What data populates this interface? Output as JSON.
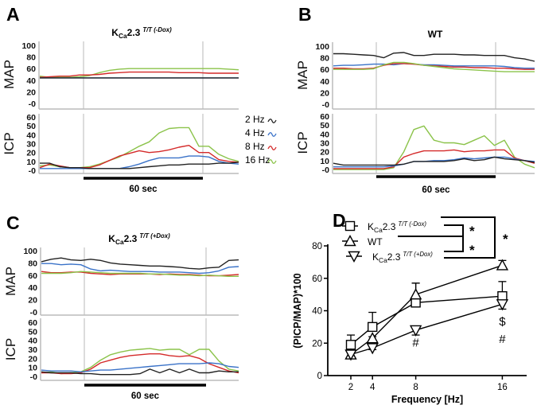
{
  "colors": {
    "2 Hz": "#222222",
    "4 Hz": "#3a72c8",
    "8 Hz": "#d42a2a",
    "16 Hz": "#8bc34a"
  },
  "trace_panels": [
    {
      "letter": "A",
      "title": {
        "base": "K",
        "sub": "Ca",
        "main": "2.3",
        "sup": "T/T (-Dox)"
      },
      "map_label": "MAP",
      "icp_label": "ICP",
      "map_ticks": [
        "100",
        "80",
        "60",
        "40",
        "20",
        "-0"
      ],
      "icp_ticks": [
        "60",
        "50",
        "40",
        "30",
        "20",
        "10",
        "-0"
      ],
      "scale_label": "60 sec",
      "map_traces": {
        "16 Hz": [
          47,
          45,
          45,
          45,
          46,
          48,
          53,
          57,
          59,
          60,
          60,
          60,
          60,
          60,
          60,
          60,
          60,
          60,
          60,
          59,
          58
        ],
        "8 Hz": [
          45,
          46,
          47,
          47,
          49,
          49,
          50,
          52,
          53,
          54,
          54,
          54,
          54,
          54,
          53,
          53,
          53,
          52,
          52,
          52,
          52
        ],
        "4 Hz": [
          44,
          44,
          44,
          44,
          44,
          44,
          44,
          44,
          44,
          44,
          44,
          44,
          44,
          44,
          44,
          44,
          44,
          44,
          44,
          44,
          44
        ],
        "2 Hz": [
          44,
          44,
          44,
          44,
          44,
          44,
          44,
          44,
          44,
          44,
          44,
          44,
          44,
          44,
          44,
          44,
          44,
          44,
          44,
          44,
          44
        ]
      },
      "icp_traces": {
        "16 Hz": [
          5,
          6,
          4,
          3,
          3,
          4,
          7,
          11,
          15,
          21,
          27,
          32,
          42,
          47,
          48,
          48,
          27,
          27,
          18,
          13,
          10
        ],
        "8 Hz": [
          3,
          7,
          5,
          3,
          3,
          3,
          6,
          11,
          16,
          19,
          22,
          20,
          21,
          23,
          26,
          28,
          20,
          20,
          12,
          10,
          9
        ],
        "4 Hz": [
          2,
          2,
          2,
          2,
          2,
          2,
          2,
          2,
          2,
          4,
          7,
          11,
          14,
          14,
          14,
          16,
          16,
          15,
          10,
          8,
          7
        ],
        "2 Hz": [
          8,
          8,
          4,
          3,
          3,
          2,
          2,
          2,
          2,
          2,
          3,
          4,
          5,
          6,
          6,
          7,
          7,
          7,
          8,
          8,
          9
        ]
      },
      "legend": [
        "2 Hz",
        "4 Hz",
        "8 Hz",
        "16 Hz"
      ]
    },
    {
      "letter": "B",
      "title": {
        "base": "WT",
        "sub": "",
        "main": "",
        "sup": ""
      },
      "map_label": "MAP",
      "icp_label": "ICP",
      "map_ticks": [
        "100",
        "80",
        "60",
        "40",
        "20",
        "-0"
      ],
      "icp_ticks": [
        "60",
        "50",
        "40",
        "30",
        "20",
        "10",
        "-0"
      ],
      "scale_label": "60 sec",
      "map_traces": {
        "2 Hz": [
          87,
          87,
          86,
          85,
          84,
          80,
          88,
          89,
          84,
          84,
          86,
          86,
          86,
          85,
          85,
          84,
          84,
          84,
          80,
          78,
          74
        ],
        "4 Hz": [
          66,
          67,
          67,
          68,
          69,
          69,
          68,
          70,
          69,
          68,
          68,
          67,
          66,
          66,
          66,
          66,
          66,
          65,
          63,
          62,
          62
        ],
        "8 Hz": [
          62,
          62,
          61,
          61,
          62,
          67,
          70,
          70,
          69,
          67,
          66,
          65,
          64,
          64,
          63,
          63,
          62,
          62,
          61,
          60,
          60
        ],
        "16 Hz": [
          60,
          60,
          60,
          60,
          61,
          68,
          72,
          72,
          70,
          67,
          65,
          63,
          61,
          60,
          59,
          58,
          57,
          56,
          56,
          56,
          56
        ]
      },
      "icp_traces": {
        "16 Hz": [
          0,
          0,
          0,
          0,
          0,
          0,
          2,
          20,
          45,
          49,
          33,
          30,
          30,
          28,
          33,
          38,
          27,
          33,
          14,
          6,
          2
        ],
        "8 Hz": [
          1,
          1,
          1,
          1,
          1,
          1,
          3,
          14,
          18,
          21,
          21,
          21,
          22,
          20,
          21,
          21,
          22,
          22,
          13,
          10,
          7
        ],
        "4 Hz": [
          3,
          3,
          3,
          3,
          3,
          3,
          4,
          6,
          9,
          9,
          10,
          10,
          11,
          13,
          12,
          13,
          14,
          14,
          12,
          10,
          9
        ],
        "2 Hz": [
          7,
          5,
          5,
          5,
          5,
          5,
          5,
          6,
          9,
          9,
          9,
          9,
          10,
          12,
          10,
          11,
          14,
          12,
          11,
          10,
          8
        ]
      },
      "legend": []
    },
    {
      "letter": "C",
      "title": {
        "base": "K",
        "sub": "Ca",
        "main": "2.3",
        "sup": "T/T (+Dox)"
      },
      "map_label": "MAP",
      "icp_label": "ICP",
      "map_ticks": [
        "100",
        "80",
        "60",
        "40",
        "20",
        "-0"
      ],
      "icp_ticks": [
        "60",
        "50",
        "40",
        "30",
        "20",
        "10",
        "-0"
      ],
      "scale_label": "60 sec",
      "map_traces": {
        "2 Hz": [
          82,
          86,
          88,
          85,
          84,
          86,
          84,
          80,
          78,
          77,
          76,
          75,
          75,
          74,
          73,
          71,
          70,
          72,
          73,
          84,
          85
        ],
        "4 Hz": [
          79,
          79,
          77,
          78,
          77,
          70,
          67,
          68,
          67,
          66,
          66,
          66,
          65,
          65,
          65,
          64,
          63,
          64,
          67,
          73,
          74
        ],
        "8 Hz": [
          66,
          64,
          64,
          65,
          65,
          63,
          62,
          61,
          62,
          62,
          62,
          62,
          61,
          62,
          61,
          61,
          60,
          59,
          59,
          60,
          61
        ],
        "16 Hz": [
          63,
          63,
          63,
          64,
          66,
          65,
          64,
          63,
          63,
          63,
          63,
          62,
          62,
          61,
          60,
          60,
          59,
          60,
          59,
          58,
          58
        ]
      },
      "icp_traces": {
        "16 Hz": [
          4,
          5,
          3,
          4,
          5,
          10,
          18,
          24,
          27,
          29,
          30,
          31,
          29,
          30,
          30,
          24,
          30,
          30,
          17,
          8,
          6
        ],
        "8 Hz": [
          4,
          4,
          3,
          3,
          4,
          8,
          15,
          18,
          21,
          23,
          24,
          25,
          25,
          23,
          22,
          23,
          20,
          14,
          10,
          6,
          4
        ],
        "4 Hz": [
          7,
          6,
          6,
          6,
          5,
          6,
          7,
          7,
          8,
          9,
          10,
          11,
          12,
          13,
          14,
          14,
          14,
          15,
          14,
          11,
          10
        ],
        "2 Hz": [
          5,
          4,
          4,
          4,
          3,
          3,
          2,
          2,
          2,
          2,
          3,
          8,
          4,
          8,
          4,
          8,
          4,
          4,
          6,
          5,
          5
        ]
      },
      "legend": []
    }
  ],
  "chart_data": {
    "type": "line",
    "letter": "D",
    "xlabel": "Frequency [Hz]",
    "ylabel": "(PICP/MAP)*100",
    "x": [
      2,
      4,
      8,
      16
    ],
    "x_ticks": [
      "2",
      "4",
      "8",
      "16"
    ],
    "y_ticks": [
      "0",
      "20",
      "40",
      "60",
      "80"
    ],
    "ylim": [
      0,
      80
    ],
    "xlim": [
      0,
      20
    ],
    "series": [
      {
        "name": {
          "base": "K",
          "sub": "Ca",
          "main": "2.3",
          "sup": "T/T (-Dox)"
        },
        "marker": "square",
        "values": [
          19,
          30,
          45,
          49
        ],
        "error": [
          6,
          9,
          12,
          9
        ],
        "error_direction": "up"
      },
      {
        "name": {
          "base": "WT",
          "sub": "",
          "main": "",
          "sup": ""
        },
        "marker": "triangle-up",
        "values": [
          13,
          23,
          50,
          68
        ],
        "error": [
          1,
          1,
          7,
          3
        ],
        "error_direction": "up"
      },
      {
        "name": {
          "base": "K",
          "sub": "Ca",
          "main": "2.3",
          "sup": "T/T (+Dox)"
        },
        "marker": "triangle-down",
        "values": [
          13,
          17,
          28,
          44
        ],
        "error": [
          1,
          1,
          3,
          3
        ],
        "error_direction": "down"
      }
    ],
    "annotations": [
      {
        "text": "#",
        "x": 8,
        "y": 18
      },
      {
        "text": "$",
        "x": 16,
        "y": 31
      },
      {
        "text": "#",
        "x": 16,
        "y": 23
      }
    ],
    "significance": [
      "*",
      "*",
      "*"
    ]
  }
}
